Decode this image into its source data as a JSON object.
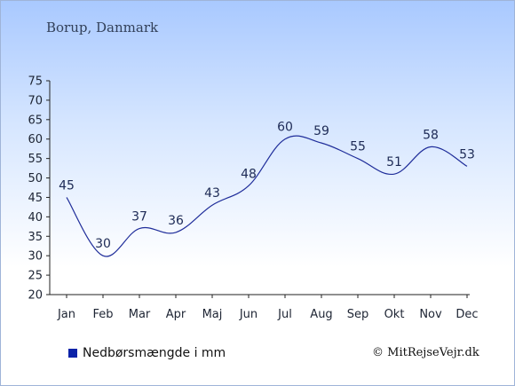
{
  "header": {
    "place": "Borup, Danmark"
  },
  "legend": {
    "label": "Nedbørsmængde i mm"
  },
  "footer": {
    "copyright": "© MitRejseVejr.dk"
  },
  "colors": {
    "line": "#1f2d9a",
    "swatch": "#0b22a8",
    "axis": "#222222"
  },
  "chart_data": {
    "type": "line",
    "categories": [
      "Jan",
      "Feb",
      "Mar",
      "Apr",
      "Maj",
      "Jun",
      "Jul",
      "Aug",
      "Sep",
      "Okt",
      "Nov",
      "Dec"
    ],
    "series": [
      {
        "name": "Nedbørsmængde i mm",
        "values": [
          45,
          30,
          37,
          36,
          43,
          48,
          60,
          59,
          55,
          51,
          58,
          53
        ]
      }
    ],
    "yticks": [
      20,
      25,
      30,
      35,
      40,
      45,
      50,
      55,
      60,
      65,
      70,
      75
    ],
    "ylim": [
      20,
      75
    ],
    "title": "",
    "xlabel": "",
    "ylabel": "",
    "grid": false,
    "legend_position": "bottom-left",
    "smooth": true
  }
}
